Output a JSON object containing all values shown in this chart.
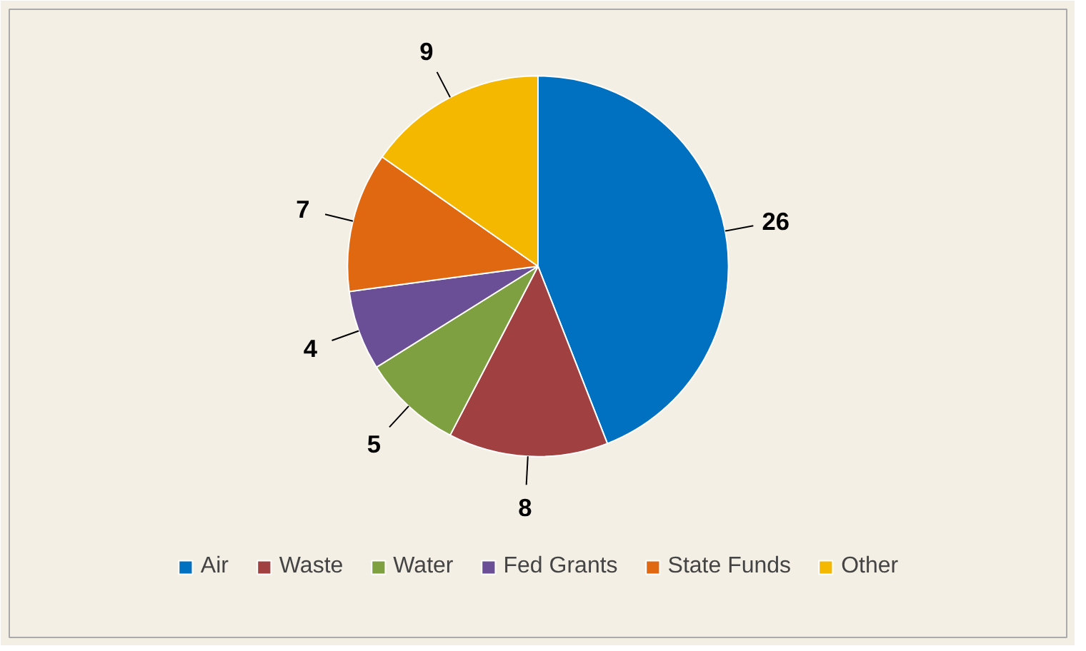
{
  "chart_data": {
    "type": "pie",
    "categories": [
      "Air",
      "Waste",
      "Water",
      "Fed Grants",
      "State Funds",
      "Other"
    ],
    "values": [
      26,
      8,
      5,
      4,
      7,
      9
    ],
    "colors": [
      "#0070c0",
      "#a04040",
      "#7ea040",
      "#6a4f96",
      "#e06810",
      "#f5b800"
    ],
    "data_labels": true,
    "legend": "bottom"
  }
}
